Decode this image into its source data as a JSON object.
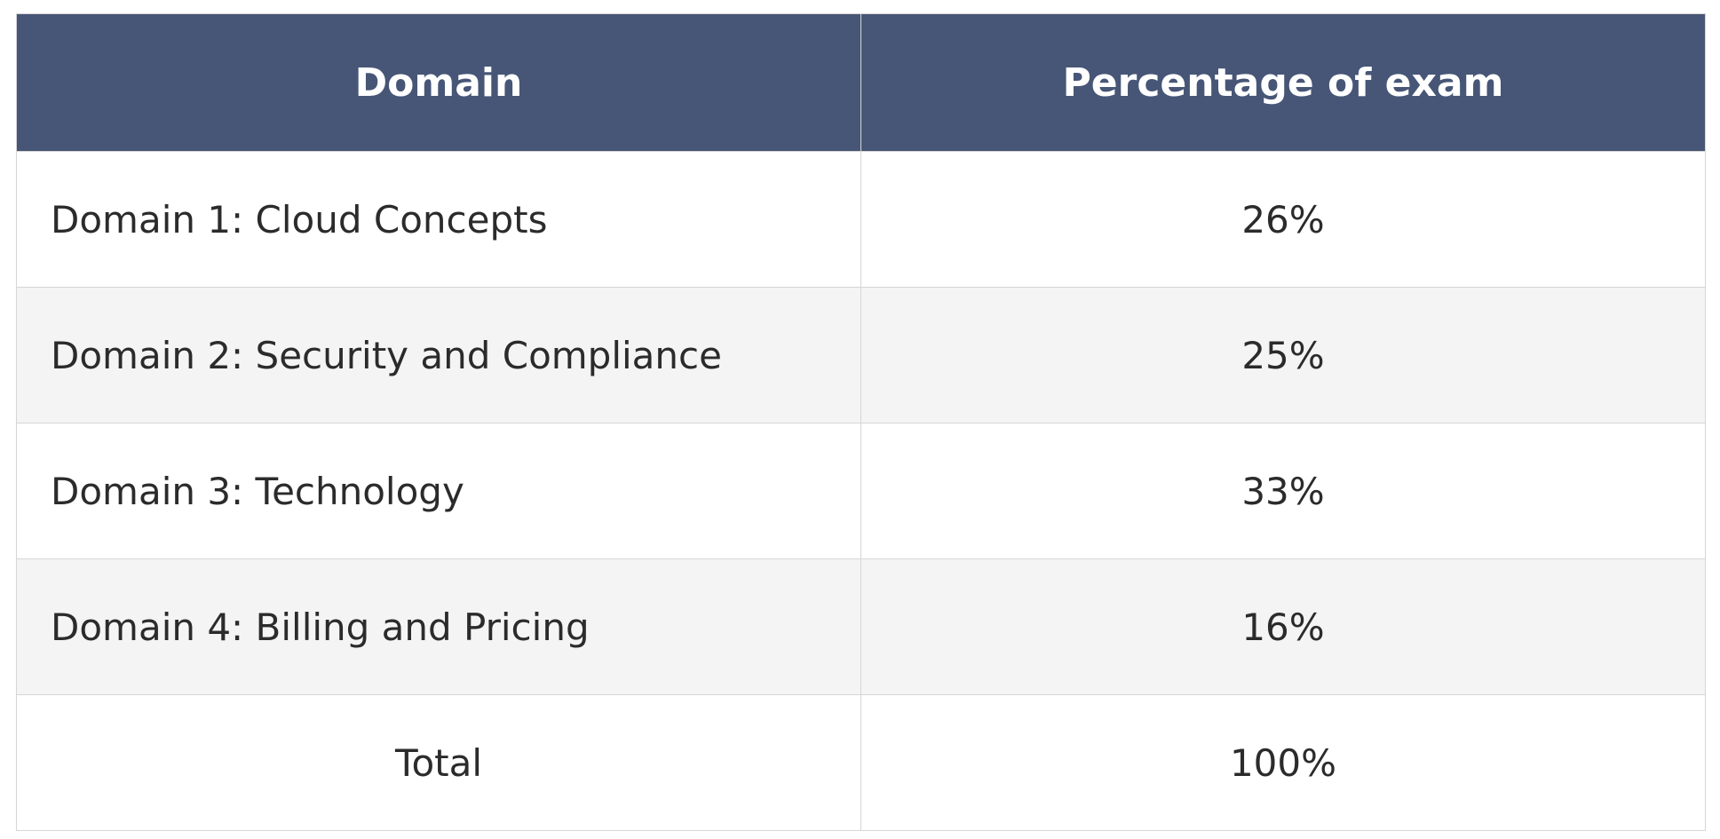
{
  "table": {
    "headers": [
      "Domain",
      "Percentage of exam"
    ],
    "rows": [
      {
        "domain": "Domain 1: Cloud Concepts",
        "percentage": "26%"
      },
      {
        "domain": "Domain 2: Security and Compliance",
        "percentage": "25%"
      },
      {
        "domain": "Domain 3: Technology",
        "percentage": "33%"
      },
      {
        "domain": "Domain 4: Billing and Pricing",
        "percentage": "16%"
      }
    ],
    "total": {
      "label": "Total",
      "percentage": "100%"
    }
  },
  "colors": {
    "header_bg": "#475676",
    "header_text": "#ffffff",
    "alt_row_bg": "#f4f4f4",
    "border": "#d6d6d6"
  }
}
